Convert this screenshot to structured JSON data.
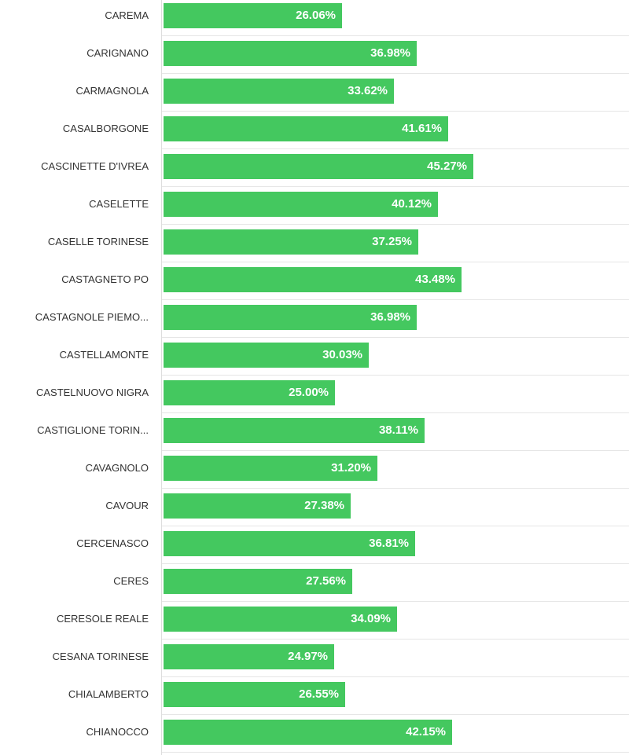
{
  "chart_data": {
    "type": "bar",
    "orientation": "horizontal",
    "title": "",
    "xlabel": "",
    "ylabel": "",
    "xlim": [
      0,
      68
    ],
    "bar_color": "#44c85f",
    "categories": [
      "CAREMA",
      "CARIGNANO",
      "CARMAGNOLA",
      "CASALBORGONE",
      "CASCINETTE D'IVREA",
      "CASELETTE",
      "CASELLE TORINESE",
      "CASTAGNETO PO",
      "CASTAGNOLE PIEMO...",
      "CASTELLAMONTE",
      "CASTELNUOVO NIGRA",
      "CASTIGLIONE TORIN...",
      "CAVAGNOLO",
      "CAVOUR",
      "CERCENASCO",
      "CERES",
      "CERESOLE REALE",
      "CESANA TORINESE",
      "CHIALAMBERTO",
      "CHIANOCCO"
    ],
    "values": [
      26.06,
      36.98,
      33.62,
      41.61,
      45.27,
      40.12,
      37.25,
      43.48,
      36.98,
      30.03,
      25.0,
      38.11,
      31.2,
      27.38,
      36.81,
      27.56,
      34.09,
      24.97,
      26.55,
      42.15
    ],
    "data_labels": [
      "26.06%",
      "36.98%",
      "33.62%",
      "41.61%",
      "45.27%",
      "40.12%",
      "37.25%",
      "43.48%",
      "36.98%",
      "30.03%",
      "25.00%",
      "38.11%",
      "31.20%",
      "27.38%",
      "36.81%",
      "27.56%",
      "34.09%",
      "24.97%",
      "26.55%",
      "42.15%"
    ]
  }
}
